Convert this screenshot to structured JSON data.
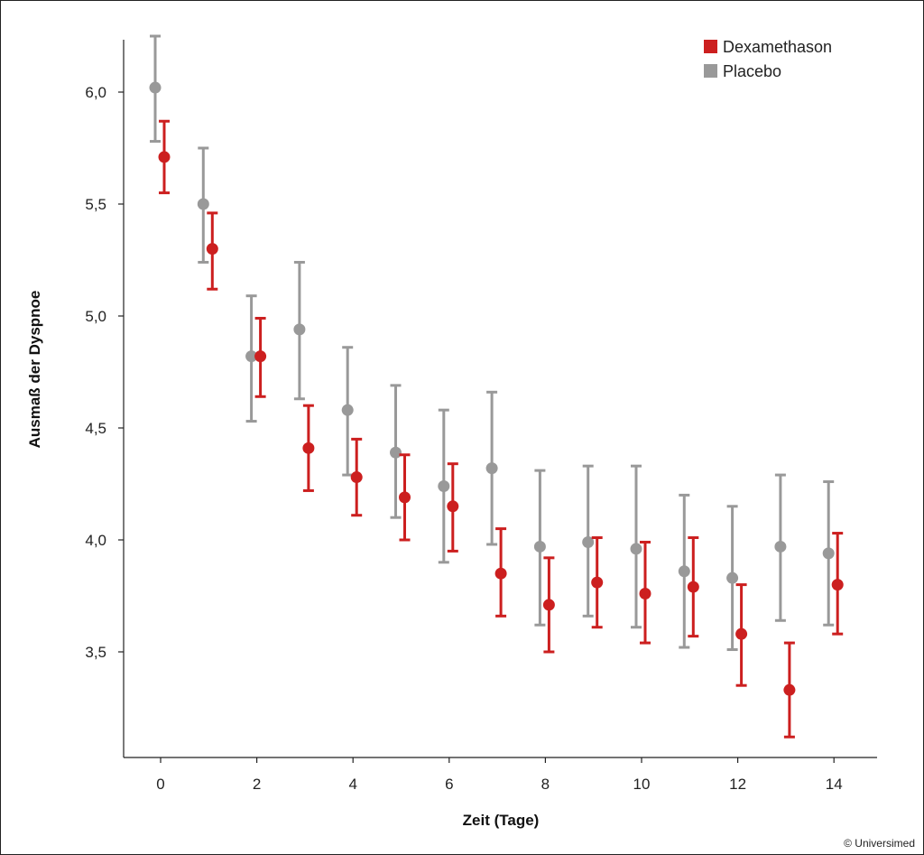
{
  "chart_data": {
    "type": "scatter",
    "title": "",
    "xlabel": "Zeit (Tage)",
    "ylabel": "Ausmaß der Dyspnoe",
    "xlim": [
      -0.5,
      15
    ],
    "ylim": [
      3.0,
      6.25
    ],
    "x_ticks": [
      0,
      2,
      4,
      6,
      8,
      10,
      12,
      14
    ],
    "x_tick_labels": [
      "0",
      "2",
      "4",
      "6",
      "8",
      "10",
      "12",
      "14"
    ],
    "y_ticks": [
      3.5,
      4.0,
      4.5,
      5.0,
      5.5,
      6.0
    ],
    "y_tick_labels": [
      "3,5",
      "4,0",
      "4,5",
      "5,0",
      "5,5",
      "6,0"
    ],
    "grid": false,
    "legend_position": "top-right",
    "error_bars": true,
    "series": [
      {
        "name": "Dexamethason",
        "color": "#cc1f1f",
        "x": [
          0,
          1,
          2,
          3,
          4,
          5,
          6,
          7,
          8,
          9,
          10,
          11,
          12,
          13,
          14
        ],
        "y": [
          5.71,
          5.3,
          4.82,
          4.41,
          4.28,
          4.19,
          4.15,
          3.85,
          3.71,
          3.81,
          3.76,
          3.79,
          3.58,
          3.33,
          3.8
        ],
        "y_low": [
          5.55,
          5.12,
          4.64,
          4.22,
          4.11,
          4.0,
          3.95,
          3.66,
          3.5,
          3.61,
          3.54,
          3.57,
          3.35,
          3.12,
          3.58
        ],
        "y_high": [
          5.87,
          5.46,
          4.99,
          4.6,
          4.45,
          4.38,
          4.34,
          4.05,
          3.92,
          4.01,
          3.99,
          4.01,
          3.8,
          3.54,
          4.03
        ]
      },
      {
        "name": "Placebo",
        "color": "#999999",
        "x": [
          0,
          1,
          2,
          3,
          4,
          5,
          6,
          7,
          8,
          9,
          10,
          11,
          12,
          13,
          14
        ],
        "y": [
          6.02,
          5.5,
          4.82,
          4.94,
          4.58,
          4.39,
          4.24,
          4.32,
          3.97,
          3.99,
          3.96,
          3.86,
          3.83,
          3.97,
          3.94
        ],
        "y_low": [
          5.78,
          5.24,
          4.53,
          4.63,
          4.29,
          4.1,
          3.9,
          3.98,
          3.62,
          3.66,
          3.61,
          3.52,
          3.51,
          3.64,
          3.62
        ],
        "y_high": [
          6.25,
          5.75,
          5.09,
          5.24,
          4.86,
          4.69,
          4.58,
          4.66,
          4.31,
          4.33,
          4.33,
          4.2,
          4.15,
          4.29,
          4.26
        ]
      }
    ]
  },
  "credit": "© Universimed"
}
